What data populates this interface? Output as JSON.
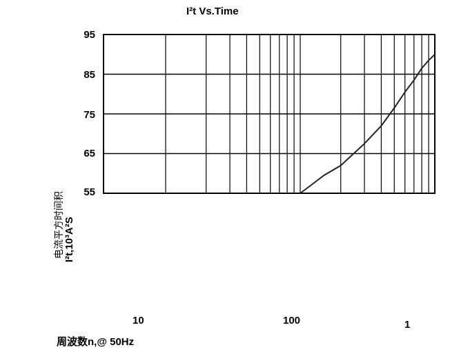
{
  "chart_data": {
    "type": "line",
    "title": "I²t  Vs.Time",
    "ylabel": "I²t,10³A²S",
    "ylabel_cn": "电流平方时间积",
    "xlabel": "周波数n,@ 50Hz",
    "yticks": [
      "95",
      "85",
      "75",
      "65",
      "55"
    ],
    "xticks": [
      "10",
      "100",
      "1"
    ],
    "ylim": [
      55,
      95
    ],
    "grid": true,
    "series": [
      {
        "x": [
          100,
          120,
          150,
          200,
          300,
          400,
          500,
          600,
          700,
          800,
          900,
          1000
        ],
        "y": [
          55,
          57,
          59.5,
          62,
          67.5,
          72,
          76.5,
          80.5,
          83.5,
          86.5,
          88.5,
          90
        ]
      }
    ]
  }
}
